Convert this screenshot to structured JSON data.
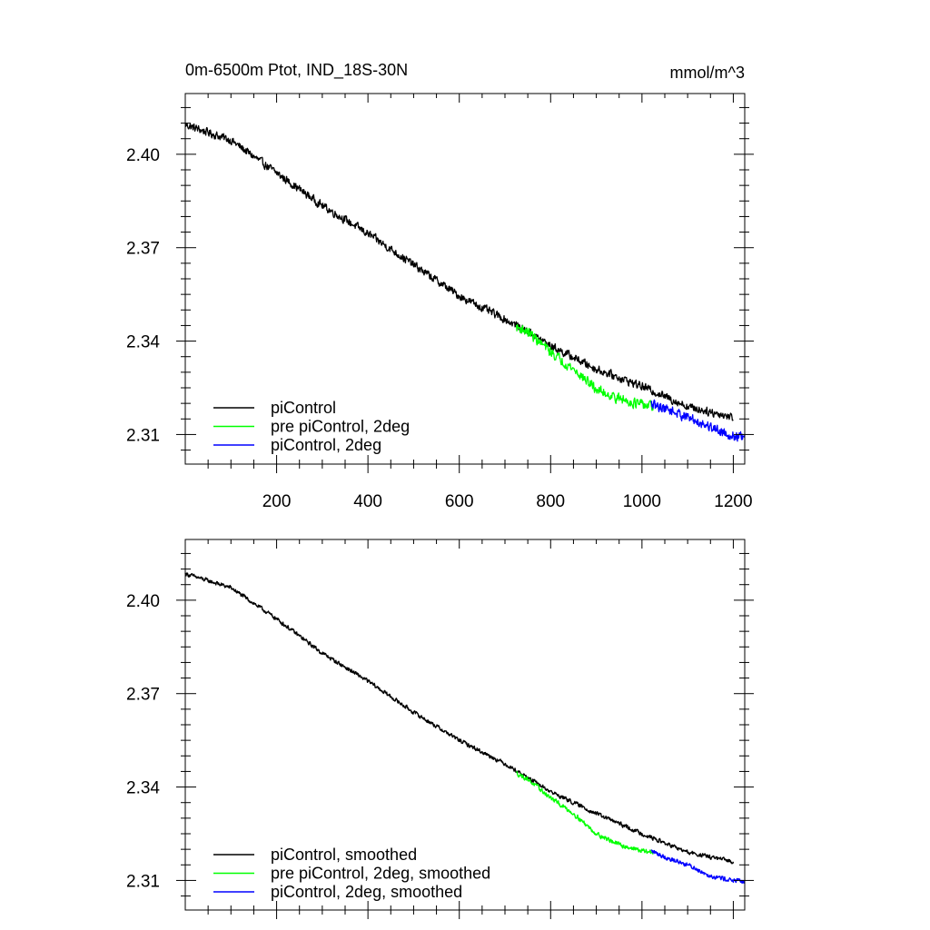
{
  "chart_data": [
    {
      "type": "line",
      "title": "0m-6500m Ptot, IND_18S-30N",
      "units": "mmol/m^3",
      "xlim": [
        0,
        1225
      ],
      "ylim": [
        2.3005,
        2.4195
      ],
      "x_ticks": [
        200,
        400,
        600,
        800,
        1000,
        1200
      ],
      "x_tick_labels": [
        "200",
        "400",
        "600",
        "800",
        "1000",
        "1200"
      ],
      "y_ticks": [
        2.31,
        2.34,
        2.37,
        2.4
      ],
      "y_tick_labels": [
        "2.31",
        "2.34",
        "2.37",
        "2.40"
      ],
      "legend_position": "bottom-left",
      "series": [
        {
          "name": "piControl",
          "color": "#000000",
          "x": [
            0,
            100,
            200,
            300,
            400,
            500,
            600,
            700,
            750,
            800,
            900,
            1000,
            1100,
            1200
          ],
          "y": [
            2.4095,
            2.4045,
            2.394,
            2.3835,
            2.3745,
            2.3645,
            2.3545,
            2.347,
            2.343,
            2.3385,
            2.331,
            2.3255,
            2.319,
            2.3155
          ],
          "noise": 0.0018
        },
        {
          "name": "pre piControl, 2deg",
          "color": "#00ff00",
          "x": [
            725,
            750,
            800,
            850,
            900,
            950,
            1000,
            1025
          ],
          "y": [
            2.3445,
            2.343,
            2.3365,
            2.331,
            2.3245,
            2.3215,
            2.3195,
            2.319
          ],
          "noise": 0.0022
        },
        {
          "name": "piControl, 2deg",
          "color": "#0000ff",
          "x": [
            1020,
            1050,
            1100,
            1150,
            1200,
            1225
          ],
          "y": [
            2.3195,
            2.3185,
            2.3155,
            2.3125,
            2.3095,
            2.309
          ],
          "noise": 0.0022
        }
      ]
    },
    {
      "type": "line",
      "xlim": [
        0,
        1225
      ],
      "ylim": [
        2.3005,
        2.4195
      ],
      "x_ticks": [
        200,
        400,
        600,
        800,
        1000,
        1200
      ],
      "y_ticks": [
        2.31,
        2.34,
        2.37,
        2.4
      ],
      "y_tick_labels": [
        "2.31",
        "2.34",
        "2.37",
        "2.40"
      ],
      "legend_position": "bottom-left",
      "series": [
        {
          "name": "piControl, smoothed",
          "color": "#000000",
          "x": [
            0,
            100,
            200,
            300,
            400,
            500,
            600,
            700,
            750,
            800,
            900,
            1000,
            1100,
            1200
          ],
          "y": [
            2.4085,
            2.404,
            2.394,
            2.383,
            2.374,
            2.364,
            2.355,
            2.3475,
            2.343,
            2.3385,
            2.3315,
            2.325,
            2.319,
            2.316
          ],
          "noise": 0.0009
        },
        {
          "name": "pre piControl, 2deg, smoothed",
          "color": "#00ff00",
          "x": [
            725,
            750,
            800,
            850,
            900,
            950,
            1000,
            1025
          ],
          "y": [
            2.3445,
            2.3425,
            2.3365,
            2.3315,
            2.325,
            2.3215,
            2.3195,
            2.319
          ],
          "noise": 0.001
        },
        {
          "name": "piControl, 2deg, smoothed",
          "color": "#0000ff",
          "x": [
            1020,
            1050,
            1100,
            1150,
            1200,
            1225
          ],
          "y": [
            2.3195,
            2.3175,
            2.315,
            2.3115,
            2.31,
            2.3095
          ],
          "noise": 0.001
        }
      ]
    }
  ]
}
